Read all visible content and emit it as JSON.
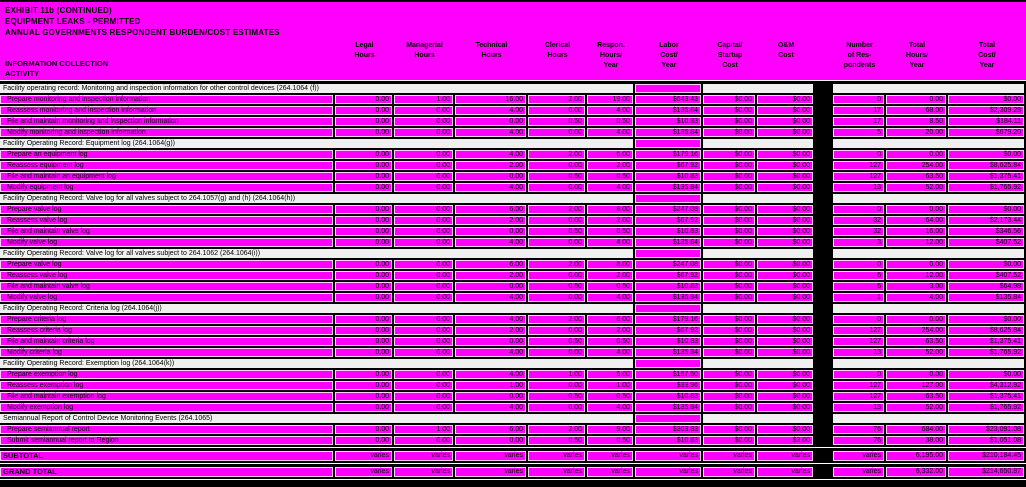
{
  "titles": [
    "EXHIBIT 11b (CONTINUED)",
    "EQUIPMENT LEAKS - PERMITTED",
    "ANNUAL GOVERNMENTS RESPONDENT BURDEN/COST ESTIMATES"
  ],
  "stub_header": [
    "INFORMATION COLLECTION",
    "ACTIVITY"
  ],
  "colors": {
    "highlight": "#ff00ff",
    "section_band": "#f0f0f0",
    "background": "#000000"
  },
  "columns": [
    "Legal\nHours",
    "Managerial\nHours",
    "Technical\nHours",
    "Clerical\nHours",
    "Respon.\nHours/\nYear",
    "Labor\nCost/\nYear",
    "Capital/\nStartup\nCost",
    "O&M\nCost",
    "Number\nof Res-\npondents",
    "Total\nHours/\nYear",
    "Total\nCost/\nYear"
  ],
  "sections": [
    {
      "header": "Facility operating record: Monitoring and inspection information for other control devices (264.1064 (f))",
      "rows": [
        {
          "activity": "Prepare monitoring and inspection information",
          "values": [
            "0.00",
            "1.00",
            "16.00",
            "2.00",
            "19.00",
            "$643.43",
            "$0.00",
            "$0.00",
            "0",
            "0.00",
            "$0.00"
          ]
        },
        {
          "activity": "Reassess monitoring and inspection information",
          "values": [
            "0.00",
            "0.00",
            "4.00",
            "0.00",
            "4.00",
            "$135.84",
            "$0.00",
            "$0.00",
            "17",
            "68.00",
            "$2,309.28"
          ]
        },
        {
          "activity": "File and maintain monitoring and inspection information",
          "values": [
            "0.00",
            "0.00",
            "0.00",
            "0.50",
            "0.50",
            "$10.83",
            "$0.00",
            "$0.00",
            "17",
            "8.50",
            "$184.11"
          ]
        },
        {
          "activity": "Modify monitoring and inspection information",
          "values": [
            "0.00",
            "0.00",
            "4.00",
            "0.00",
            "4.00",
            "$135.84",
            "$0.00",
            "$0.00",
            "5",
            "20.00",
            "$679.20"
          ]
        }
      ]
    },
    {
      "header": "Facility Operating Record:  Equipment log (264.1064(g))",
      "rows": [
        {
          "activity": "Prepare an equipment log",
          "values": [
            "0.00",
            "0.00",
            "4.00",
            "2.00",
            "6.00",
            "$179.16",
            "$0.00",
            "$0.00",
            "0",
            "0.00",
            "$0.00"
          ]
        },
        {
          "activity": "Reassess equipment log",
          "values": [
            "0.00",
            "0.00",
            "2.00",
            "0.00",
            "2.00",
            "$67.92",
            "$0.00",
            "$0.00",
            "127",
            "254.00",
            "$8,625.84"
          ]
        },
        {
          "activity": "File and maintain an equipment log",
          "values": [
            "0.00",
            "0.00",
            "0.00",
            "0.50",
            "0.50",
            "$10.83",
            "$0.00",
            "$0.00",
            "127",
            "63.50",
            "$1,375.41"
          ]
        },
        {
          "activity": "Modify equipment log",
          "values": [
            "0.00",
            "0.00",
            "4.00",
            "0.00",
            "4.00",
            "$135.84",
            "$0.00",
            "$0.00",
            "13",
            "52.00",
            "$1,765.92"
          ]
        }
      ]
    },
    {
      "header": "Facility Operating Record:  Valve log for all valves subject to 264.1057(g) and (h) (264.1064(h))",
      "rows": [
        {
          "activity": "Prepare valve log",
          "values": [
            "0.00",
            "0.00",
            "6.00",
            "2.00",
            "8.00",
            "$247.08",
            "$0.00",
            "$0.00",
            "0",
            "0.00",
            "$0.00"
          ]
        },
        {
          "activity": "Reassess valve log",
          "values": [
            "0.00",
            "0.00",
            "2.00",
            "0.00",
            "2.00",
            "$67.92",
            "$0.00",
            "$0.00",
            "32",
            "64.00",
            "$2,173.44"
          ]
        },
        {
          "activity": "File and maintain valve log",
          "values": [
            "0.00",
            "0.00",
            "0.00",
            "0.50",
            "0.50",
            "$10.83",
            "$0.00",
            "$0.00",
            "32",
            "16.00",
            "$346.56"
          ]
        },
        {
          "activity": "Modify valve log",
          "values": [
            "0.00",
            "0.00",
            "4.00",
            "0.00",
            "4.00",
            "$135.84",
            "$0.00",
            "$0.00",
            "3",
            "12.00",
            "$407.52"
          ]
        }
      ]
    },
    {
      "header": "Facility Operating Record:  Valve log for all valves subject to 264.1062 (264.1064(i))",
      "rows": [
        {
          "activity": "Prepare valve log",
          "values": [
            "0.00",
            "0.00",
            "6.00",
            "2.00",
            "8.00",
            "$247.08",
            "$0.00",
            "$0.00",
            "0",
            "0.00",
            "$0.00"
          ]
        },
        {
          "activity": "Reassess valve log",
          "values": [
            "0.00",
            "0.00",
            "2.00",
            "0.00",
            "2.00",
            "$67.92",
            "$0.00",
            "$0.00",
            "6",
            "12.00",
            "$407.52"
          ]
        },
        {
          "activity": "File and maintain valve log",
          "values": [
            "0.00",
            "0.00",
            "0.00",
            "0.50",
            "0.50",
            "$10.83",
            "$0.00",
            "$0.00",
            "6",
            "3.00",
            "$64.98"
          ]
        },
        {
          "activity": "Modify valve log",
          "values": [
            "0.00",
            "0.00",
            "4.00",
            "0.00",
            "4.00",
            "$135.84",
            "$0.00",
            "$0.00",
            "1",
            "4.00",
            "$135.84"
          ]
        }
      ]
    },
    {
      "header": "Facility Operating Record:  Criteria log (264.1064(j))",
      "rows": [
        {
          "activity": "Prepare criteria log",
          "values": [
            "0.00",
            "0.00",
            "4.00",
            "2.00",
            "6.00",
            "$179.16",
            "$0.00",
            "$0.00",
            "0",
            "0.00",
            "$0.00"
          ]
        },
        {
          "activity": "Reassess criteria log",
          "values": [
            "0.00",
            "0.00",
            "2.00",
            "0.00",
            "2.00",
            "$67.92",
            "$0.00",
            "$0.00",
            "127",
            "254.00",
            "$8,625.84"
          ]
        },
        {
          "activity": "File and maintain criteria log",
          "values": [
            "0.00",
            "0.00",
            "0.00",
            "0.50",
            "0.50",
            "$10.83",
            "$0.00",
            "$0.00",
            "127",
            "63.50",
            "$1,375.41"
          ]
        },
        {
          "activity": "Modify criteria log",
          "values": [
            "0.00",
            "0.00",
            "4.00",
            "0.00",
            "4.00",
            "$135.84",
            "$0.00",
            "$0.00",
            "13",
            "52.00",
            "$1,765.92"
          ]
        }
      ]
    },
    {
      "header": "Facility Operating Record:  Exemption log (264.1064(k))",
      "rows": [
        {
          "activity": "Prepare exemption log",
          "values": [
            "0.00",
            "0.00",
            "4.00",
            "1.00",
            "5.00",
            "$157.50",
            "$0.00",
            "$0.00",
            "0",
            "0.00",
            "$0.00"
          ]
        },
        {
          "activity": "Reassess exemption log",
          "values": [
            "0.00",
            "0.00",
            "1.00",
            "0.00",
            "1.00",
            "$33.96",
            "$0.00",
            "$0.00",
            "127",
            "127.00",
            "$4,312.92"
          ]
        },
        {
          "activity": "File and maintain exemption log",
          "values": [
            "0.00",
            "0.00",
            "0.00",
            "0.50",
            "0.50",
            "$10.83",
            "$0.00",
            "$0.00",
            "127",
            "63.50",
            "$1,375.41"
          ]
        },
        {
          "activity": "Modify exemption log",
          "values": [
            "0.00",
            "0.00",
            "4.00",
            "0.00",
            "4.00",
            "$135.84",
            "$0.00",
            "$0.00",
            "13",
            "52.00",
            "$1,765.92"
          ]
        }
      ]
    },
    {
      "header": "Semiannual Report of Control Device Monitoring Events (264.1065)",
      "rows": [
        {
          "activity": "Prepare semiannual report",
          "values": [
            "0.00",
            "1.00",
            "6.00",
            "2.00",
            "9.00",
            "$303.83",
            "$0.00",
            "$0.00",
            "76",
            "684.00",
            "$23,091.08"
          ]
        },
        {
          "activity": "Submit semiannual report to Region",
          "values": [
            "0.00",
            "0.00",
            "0.00",
            "0.50",
            "0.50",
            "$10.83",
            "$0.00",
            "$3.00",
            "76",
            "38.00",
            "$1,051.08"
          ]
        }
      ]
    }
  ],
  "totals": [
    {
      "label": "SUBTOTAL",
      "values": [
        "varies",
        "varies",
        "varies",
        "varies",
        "varies",
        "varies",
        "varies",
        "varies",
        "varies",
        "6,195.00",
        "$210,184.45"
      ]
    },
    {
      "label": "GRAND TOTAL",
      "values": [
        "varies",
        "varies",
        "varies",
        "varies",
        "varies",
        "varies",
        "varies",
        "varies",
        "varies",
        "6,332.00",
        "$214,650.87"
      ]
    }
  ]
}
